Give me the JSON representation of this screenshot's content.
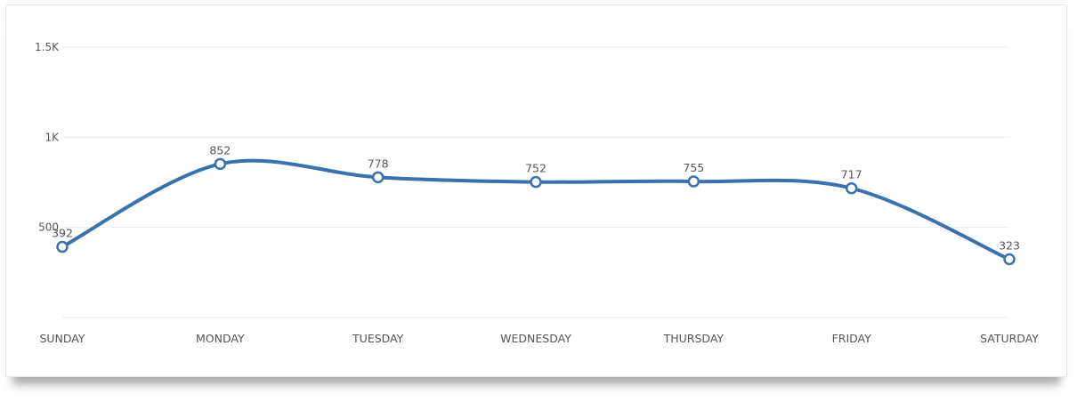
{
  "chart_data": {
    "type": "line",
    "categories": [
      "SUNDAY",
      "MONDAY",
      "TUESDAY",
      "WEDNESDAY",
      "THURSDAY",
      "FRIDAY",
      "SATURDAY"
    ],
    "series": [
      {
        "values": [
          392,
          852,
          778,
          752,
          755,
          717,
          323
        ],
        "color": "#3a72b0"
      }
    ],
    "y_ticks": [
      {
        "value": 500,
        "label": "500"
      },
      {
        "value": 1000,
        "label": "1K"
      },
      {
        "value": 1500,
        "label": "1.5K"
      }
    ],
    "ylim": [
      0,
      1500
    ],
    "grid": true,
    "smooth": true,
    "marker_fill": "#ffffff",
    "gridline_color": "#ebebeb"
  }
}
